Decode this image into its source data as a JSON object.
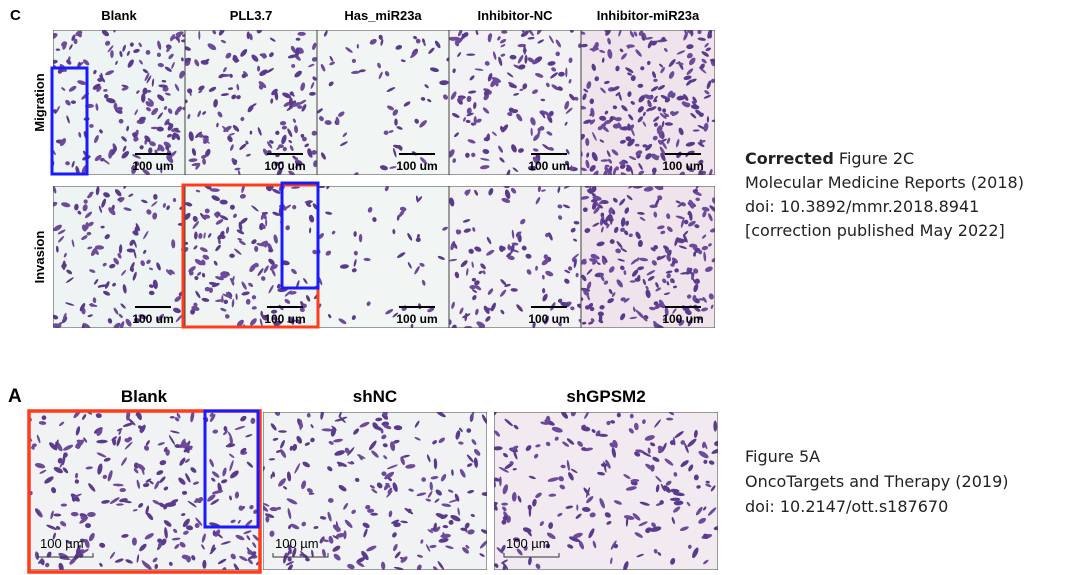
{
  "figure_2c": {
    "label": "C",
    "columns": [
      "Blank",
      "PLL3.7",
      "Has_miR23a",
      "Inhibitor-NC",
      "Inhibitor-miR23a"
    ],
    "rows": [
      "Migration",
      "Invasion"
    ],
    "scale_bars": [
      "100 um",
      "100 um",
      "100 um",
      "100 um",
      "100 um",
      "100 um",
      "100 um",
      "100 um",
      "100 um",
      "100 um"
    ]
  },
  "caption_2c": {
    "status": "Corrected",
    "title": "Figure 2C",
    "journal": "Molecular Medicine Reports (2018)",
    "doi": "doi: 10.3892/mmr.2018.8941",
    "note": "[correction published May 2022]"
  },
  "figure_5a": {
    "label": "A",
    "columns": [
      "Blank",
      "shNC",
      "shGPSM2"
    ],
    "scale_bars": [
      "100 µm",
      "100 µm",
      "100 µm"
    ]
  },
  "caption_5a": {
    "title": "Figure 5A",
    "journal": "OncoTargets and Therapy (2019)",
    "doi": "doi: 10.2147/ott.s187670"
  }
}
